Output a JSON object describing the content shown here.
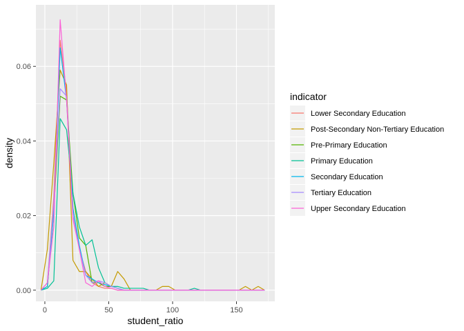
{
  "chart_data": {
    "type": "line",
    "subtype": "frequency-polygon density",
    "xlabel": "student_ratio",
    "ylabel": "density",
    "xlim": [
      -7,
      180
    ],
    "ylim": [
      -0.003,
      0.0765
    ],
    "x_ticks": [
      0,
      50,
      100,
      150
    ],
    "x_tick_labels": [
      "0",
      "50",
      "100",
      "150"
    ],
    "y_ticks": [
      0.0,
      0.02,
      0.04,
      0.06
    ],
    "y_tick_labels": [
      "0.00",
      "0.02",
      "0.04",
      "0.06"
    ],
    "grid": true,
    "panel_background": "#ebebeb",
    "legend": {
      "title": "indicator",
      "position": "right"
    },
    "series": [
      {
        "name": "Lower Secondary Education",
        "color": "#F8766D",
        "x": [
          -3,
          2,
          7,
          12,
          17,
          22,
          27,
          32,
          37,
          42,
          47,
          52,
          57,
          62,
          67,
          72,
          77,
          82,
          87,
          92,
          97,
          102,
          107,
          112,
          117,
          122,
          127,
          132,
          137,
          142,
          147,
          152,
          157,
          162,
          167,
          172
        ],
        "y": [
          0,
          0.002,
          0.025,
          0.067,
          0.053,
          0.022,
          0.011,
          0.005,
          0.002,
          0.001,
          0.0005,
          0.0005,
          0,
          0,
          0,
          0,
          0,
          0,
          0,
          0,
          0,
          0,
          0,
          0,
          0,
          0,
          0,
          0,
          0,
          0,
          0,
          0,
          0,
          0,
          0,
          0
        ]
      },
      {
        "name": "Post-Secondary Non-Tertiary Education",
        "color": "#C49A00",
        "x": [
          -3,
          2,
          7,
          12,
          17,
          22,
          27,
          32,
          37,
          42,
          47,
          52,
          57,
          62,
          67,
          72,
          77,
          82,
          87,
          92,
          97,
          102,
          107,
          112,
          117,
          122,
          127,
          132,
          137,
          142,
          147,
          152,
          157,
          162,
          167,
          172
        ],
        "y": [
          0,
          0.011,
          0.034,
          0.059,
          0.055,
          0.008,
          0.005,
          0.005,
          0.003,
          0.001,
          0.002,
          0.001,
          0.005,
          0.003,
          0,
          0,
          0,
          0,
          0,
          0.001,
          0.001,
          0,
          0,
          0,
          0,
          0,
          0,
          0,
          0,
          0,
          0,
          0,
          0.001,
          0,
          0.001,
          0
        ]
      },
      {
        "name": "Pre-Primary Education",
        "color": "#53B400",
        "x": [
          -3,
          2,
          7,
          12,
          17,
          22,
          27,
          32,
          37,
          42,
          47,
          52,
          57,
          62,
          67,
          72,
          77,
          82,
          87,
          92,
          97,
          102,
          107,
          112,
          117,
          122,
          127,
          132,
          137,
          142,
          147,
          152,
          157,
          162,
          167,
          172
        ],
        "y": [
          0,
          0.001,
          0.021,
          0.052,
          0.051,
          0.026,
          0.014,
          0.012,
          0.002,
          0.002,
          0.001,
          0.001,
          0.0005,
          0,
          0,
          0,
          0,
          0,
          0,
          0,
          0,
          0,
          0,
          0,
          0,
          0,
          0,
          0,
          0,
          0,
          0,
          0,
          0,
          0,
          0,
          0
        ]
      },
      {
        "name": "Primary Education",
        "color": "#00C094",
        "x": [
          -3,
          2,
          7,
          12,
          17,
          22,
          27,
          32,
          37,
          42,
          47,
          52,
          57,
          62,
          67,
          72,
          77,
          82,
          87,
          92,
          97,
          102,
          107,
          112,
          117,
          122,
          127,
          132,
          137,
          142,
          147,
          152,
          157,
          162,
          167,
          172
        ],
        "y": [
          0,
          0.0005,
          0.0025,
          0.046,
          0.043,
          0.026,
          0.017,
          0.012,
          0.0135,
          0.006,
          0.002,
          0.001,
          0.001,
          0.0005,
          0.0005,
          0.0005,
          0.0005,
          0,
          0,
          0,
          0,
          0,
          0,
          0,
          0.0005,
          0,
          0,
          0,
          0,
          0,
          0,
          0,
          0,
          0,
          0,
          0
        ]
      },
      {
        "name": "Secondary Education",
        "color": "#00B6EB",
        "x": [
          -3,
          2,
          7,
          12,
          17,
          22,
          27,
          32,
          37,
          42,
          47,
          52,
          57,
          62,
          67,
          72,
          77,
          82,
          87,
          92,
          97,
          102,
          107,
          112,
          117,
          122,
          127,
          132,
          137,
          142,
          147,
          152,
          157,
          162,
          167,
          172
        ],
        "y": [
          0,
          0.001,
          0.021,
          0.065,
          0.051,
          0.022,
          0.012,
          0.004,
          0.003,
          0.002,
          0.0015,
          0.001,
          0.0005,
          0,
          0,
          0,
          0,
          0,
          0,
          0,
          0,
          0,
          0,
          0,
          0,
          0,
          0,
          0,
          0,
          0,
          0,
          0,
          0,
          0,
          0,
          0
        ]
      },
      {
        "name": "Tertiary Education",
        "color": "#A58AFF",
        "x": [
          -3,
          2,
          7,
          12,
          17,
          22,
          27,
          32,
          37,
          42,
          47,
          52,
          57,
          62,
          67,
          72,
          77,
          82,
          87,
          92,
          97,
          102,
          107,
          112,
          117,
          122,
          127,
          132,
          137,
          142,
          147,
          152,
          157,
          162,
          167,
          172
        ],
        "y": [
          0,
          0.002,
          0.023,
          0.054,
          0.052,
          0.02,
          0.011,
          0.004,
          0.002,
          0.0025,
          0.002,
          0.001,
          0.0005,
          0,
          0,
          0,
          0,
          0,
          0,
          0,
          0,
          0,
          0,
          0,
          0,
          0,
          0,
          0,
          0,
          0,
          0,
          0,
          0,
          0,
          0,
          0
        ]
      },
      {
        "name": "Upper Secondary Education",
        "color": "#FB61D7",
        "x": [
          -3,
          2,
          7,
          12,
          17,
          22,
          27,
          32,
          37,
          42,
          47,
          52,
          57,
          62,
          67,
          72,
          77,
          82,
          87,
          92,
          97,
          102,
          107,
          112,
          117,
          122,
          127,
          132,
          137,
          142,
          147,
          152,
          157,
          162,
          167,
          172
        ],
        "y": [
          0,
          0.002,
          0.017,
          0.0725,
          0.051,
          0.019,
          0.011,
          0.002,
          0.001,
          0.0025,
          0.001,
          0.0005,
          0,
          0,
          0,
          0,
          0,
          0,
          0,
          0,
          0,
          0,
          0,
          0,
          0,
          0,
          0,
          0,
          0,
          0,
          0,
          0,
          0,
          0,
          0,
          0
        ]
      }
    ]
  }
}
